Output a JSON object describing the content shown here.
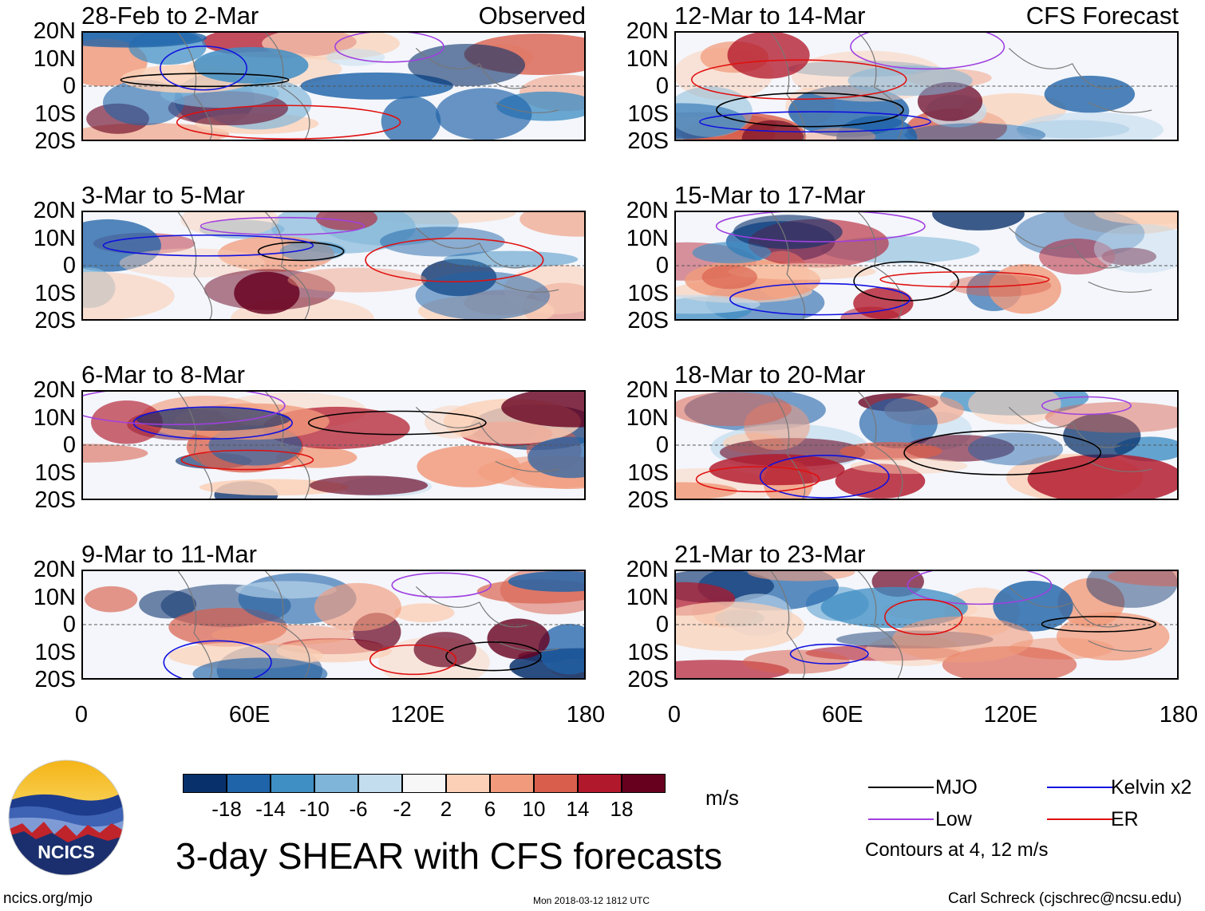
{
  "chart_data": {
    "type": "heatmap",
    "title": "3-day SHEAR with CFS forecasts",
    "units": "m/s",
    "x_ticks": [
      "0",
      "60E",
      "120E",
      "180"
    ],
    "y_ticks": [
      "20N",
      "10N",
      "0",
      "10S",
      "20S"
    ],
    "xlim": [
      0,
      180
    ],
    "ylim": [
      -20,
      20
    ],
    "observed_label": "Observed",
    "forecast_label": "CFS Forecast",
    "panels": [
      {
        "title": "28-Feb to 2-Mar",
        "column": "Observed"
      },
      {
        "title": "3-Mar to 5-Mar",
        "column": "Observed"
      },
      {
        "title": "6-Mar to 8-Mar",
        "column": "Observed"
      },
      {
        "title": "9-Mar to 11-Mar",
        "column": "Observed"
      },
      {
        "title": "12-Mar to 14-Mar",
        "column": "CFS Forecast"
      },
      {
        "title": "15-Mar to 17-Mar",
        "column": "CFS Forecast"
      },
      {
        "title": "18-Mar to 20-Mar",
        "column": "CFS Forecast"
      },
      {
        "title": "21-Mar to 23-Mar",
        "column": "CFS Forecast"
      }
    ],
    "colorbar": {
      "labels": [
        "-18",
        "-14",
        "-10",
        "-6",
        "-2",
        "2",
        "6",
        "10",
        "14",
        "18"
      ],
      "colors": [
        "#08306b",
        "#1f63a8",
        "#3f8ec4",
        "#7fb5d8",
        "#c3dcee",
        "#f7f7f7",
        "#fbd0b6",
        "#f19b7c",
        "#d95f4c",
        "#b2182b",
        "#67001f"
      ]
    },
    "legend": [
      {
        "label": "MJO",
        "color": "#000000"
      },
      {
        "label": "Kelvin x2",
        "color": "#1010e0"
      },
      {
        "label": "Low",
        "color": "#a040e0"
      },
      {
        "label": "ER",
        "color": "#e01010"
      }
    ],
    "contour_note": "Contours at 4, 12 m/s"
  },
  "footer": {
    "logo_text": "NCICS",
    "site": "ncics.org/mjo",
    "timestamp": "Mon 2018-03-12 1812 UTC",
    "author": "Carl Schreck (cjschrec@ncsu.edu)"
  }
}
